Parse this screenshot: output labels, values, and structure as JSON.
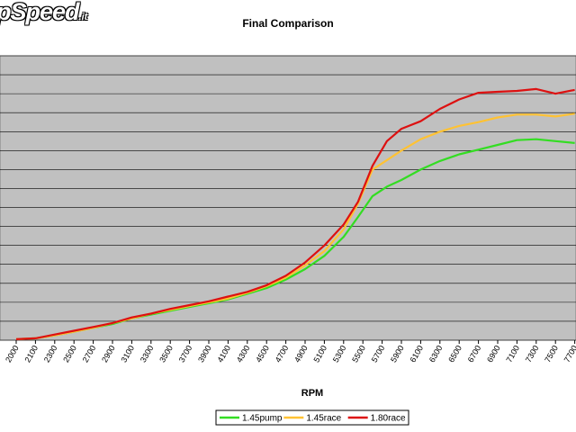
{
  "logo": {
    "text": "pSpeed",
    "suffix": ".it"
  },
  "chart_data": {
    "type": "line",
    "title": "Final Comparison",
    "xlabel": "RPM",
    "ylabel": "",
    "x_ticks": [
      "2000",
      "2100",
      "2300",
      "2500",
      "2700",
      "2900",
      "3100",
      "3300",
      "3500",
      "3700",
      "3900",
      "4100",
      "4300",
      "4500",
      "4700",
      "4900",
      "5100",
      "5300",
      "5500",
      "5700",
      "5900",
      "6100",
      "6300",
      "6500",
      "6700",
      "6900",
      "7100",
      "7300",
      "7500",
      "7700"
    ],
    "ylim": [
      0,
      15
    ],
    "grid": true,
    "legend_position": "bottom",
    "series": [
      {
        "name": "1.45pump",
        "color": "#33dd22",
        "x": [
          2000,
          2100,
          2300,
          2500,
          2700,
          2900,
          3100,
          3300,
          3500,
          3700,
          3900,
          4100,
          4300,
          4500,
          4700,
          4900,
          5100,
          5300,
          5450,
          5600,
          5750,
          5900,
          6100,
          6300,
          6500,
          6700,
          6900,
          7100,
          7300,
          7500,
          7700
        ],
        "values": [
          0.05,
          0.1,
          0.25,
          0.45,
          0.65,
          0.85,
          1.15,
          1.35,
          1.55,
          1.75,
          1.95,
          2.15,
          2.45,
          2.75,
          3.2,
          3.75,
          4.45,
          5.45,
          6.5,
          7.6,
          8.1,
          8.45,
          9.0,
          9.45,
          9.8,
          10.05,
          10.3,
          10.55,
          10.6,
          10.5,
          10.4
        ]
      },
      {
        "name": "1.45race",
        "color": "#ffc233",
        "x": [
          2000,
          2100,
          2300,
          2500,
          2700,
          2900,
          3100,
          3300,
          3500,
          3700,
          3900,
          4100,
          4300,
          4500,
          4700,
          4900,
          5100,
          5300,
          5450,
          5600,
          5750,
          5900,
          6100,
          6300,
          6500,
          6700,
          6900,
          7100,
          7300,
          7500,
          7700
        ],
        "values": [
          0.05,
          0.1,
          0.25,
          0.45,
          0.65,
          0.9,
          1.15,
          1.4,
          1.6,
          1.8,
          2.0,
          2.2,
          2.5,
          2.85,
          3.3,
          3.95,
          4.7,
          5.85,
          7.2,
          9.0,
          9.5,
          10.0,
          10.6,
          11.0,
          11.3,
          11.5,
          11.75,
          11.9,
          11.9,
          11.8,
          11.95
        ]
      },
      {
        "name": "1.80race",
        "color": "#dd1111",
        "x": [
          2000,
          2100,
          2300,
          2500,
          2700,
          2900,
          3100,
          3300,
          3500,
          3700,
          3900,
          4100,
          4300,
          4500,
          4700,
          4900,
          5100,
          5300,
          5450,
          5600,
          5750,
          5900,
          6100,
          6300,
          6500,
          6700,
          6900,
          7100,
          7300,
          7500,
          7700
        ],
        "values": [
          0.05,
          0.1,
          0.3,
          0.5,
          0.7,
          0.9,
          1.2,
          1.4,
          1.65,
          1.85,
          2.05,
          2.3,
          2.55,
          2.9,
          3.4,
          4.1,
          5.0,
          6.1,
          7.3,
          9.2,
          10.5,
          11.15,
          11.55,
          12.2,
          12.7,
          13.05,
          13.1,
          13.15,
          13.25,
          13.0,
          13.2
        ]
      }
    ]
  }
}
